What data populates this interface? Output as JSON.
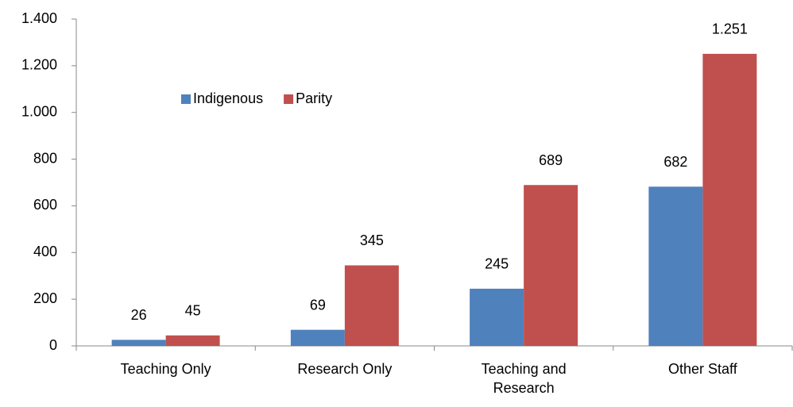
{
  "chart_data": {
    "type": "bar",
    "categories": [
      "Teaching Only",
      "Research Only",
      "Teaching and Research",
      "Other Staff"
    ],
    "series": [
      {
        "name": "Indigenous",
        "color": "#4f81bd",
        "values": [
          26,
          69,
          245,
          682
        ]
      },
      {
        "name": "Parity",
        "color": "#c0504d",
        "values": [
          45,
          345,
          689,
          1251
        ],
        "value_labels": [
          "45",
          "345",
          "689",
          "1.251"
        ]
      }
    ],
    "ylim": [
      0,
      1400
    ],
    "yticks": [
      0,
      200,
      400,
      600,
      800,
      {
        "value": 1000,
        "label": "1.000"
      },
      {
        "value": 1200,
        "label": "1.200"
      },
      {
        "value": 1400,
        "label": "1.400"
      }
    ],
    "grid": false,
    "legend": "top-left"
  }
}
